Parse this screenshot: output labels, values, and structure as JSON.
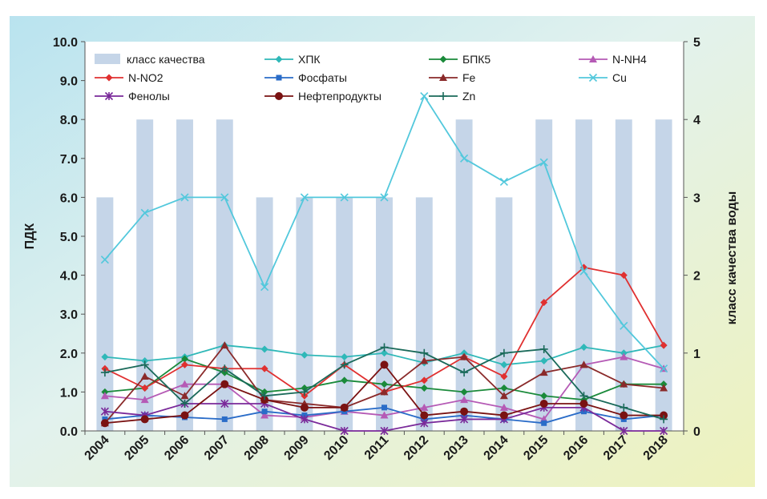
{
  "chart_data": {
    "type": "line",
    "x_categories": [
      "2004",
      "2005",
      "2006",
      "2007",
      "2008",
      "2009",
      "2010",
      "2011",
      "2012",
      "2013",
      "2014",
      "2015",
      "2016",
      "2017",
      "2018"
    ],
    "y_left": {
      "label": "ПДК",
      "range": [
        0,
        10
      ],
      "ticks": [
        "0.0",
        "1.0",
        "2.0",
        "3.0",
        "4.0",
        "5.0",
        "6.0",
        "7.0",
        "8.0",
        "9.0",
        "10.0"
      ]
    },
    "y_right": {
      "label": "класс качества воды",
      "range": [
        0,
        5
      ],
      "ticks": [
        "0",
        "1",
        "2",
        "3",
        "4",
        "5"
      ]
    },
    "bars": {
      "name": "класс качества",
      "axis": "right",
      "color": "#c5d5e8",
      "values": [
        3,
        4,
        4,
        4,
        3,
        3,
        3,
        3,
        3,
        4,
        3,
        4,
        4,
        4,
        4
      ]
    },
    "series": [
      {
        "name": "ХПК",
        "color": "#2fb8b8",
        "marker": "diamond",
        "values": [
          1.9,
          1.8,
          1.9,
          2.2,
          2.1,
          1.95,
          1.9,
          2.0,
          1.75,
          2.0,
          1.7,
          1.8,
          2.15,
          2.0,
          2.2
        ]
      },
      {
        "name": "БПК5",
        "color": "#1a8a3a",
        "marker": "diamond",
        "values": [
          1.0,
          1.1,
          1.85,
          1.5,
          1.0,
          1.1,
          1.3,
          1.2,
          1.1,
          1.0,
          1.1,
          0.9,
          0.8,
          1.2,
          1.2
        ]
      },
      {
        "name": "N-NH4",
        "color": "#b55ab5",
        "marker": "triangle",
        "values": [
          0.9,
          0.8,
          1.2,
          1.2,
          0.4,
          0.35,
          0.5,
          0.4,
          0.6,
          0.8,
          0.6,
          0.3,
          1.7,
          1.9,
          1.6
        ]
      },
      {
        "name": "N-NO2",
        "color": "#e03030",
        "marker": "diamond",
        "values": [
          1.6,
          1.1,
          1.7,
          1.6,
          1.6,
          0.9,
          1.7,
          1.0,
          1.3,
          1.9,
          1.4,
          3.3,
          4.2,
          4.0,
          2.2
        ]
      },
      {
        "name": "Фосфаты",
        "color": "#2a6cc8",
        "marker": "square",
        "values": [
          0.3,
          0.4,
          0.35,
          0.3,
          0.5,
          0.4,
          0.5,
          0.6,
          0.3,
          0.4,
          0.3,
          0.2,
          0.5,
          0.3,
          0.4
        ]
      },
      {
        "name": "Fe",
        "color": "#8a2a2a",
        "marker": "triangle",
        "values": [
          0.2,
          1.4,
          0.9,
          2.2,
          0.8,
          0.7,
          0.6,
          1.0,
          1.8,
          1.9,
          0.9,
          1.5,
          1.7,
          1.2,
          1.1
        ]
      },
      {
        "name": "Cu",
        "color": "#52c8dc",
        "marker": "x",
        "values": [
          4.4,
          5.6,
          6.0,
          6.0,
          3.7,
          6.0,
          6.0,
          6.0,
          8.6,
          7.0,
          6.4,
          6.9,
          4.1,
          2.7,
          1.6
        ]
      },
      {
        "name": "Фенолы",
        "color": "#7a2a9a",
        "marker": "star",
        "values": [
          0.5,
          0.4,
          0.7,
          0.7,
          0.7,
          0.3,
          0.0,
          0.0,
          0.2,
          0.3,
          0.3,
          0.6,
          0.6,
          0.0,
          0.0
        ]
      },
      {
        "name": "Нефтепродукты",
        "color": "#7a1212",
        "marker": "circle",
        "values": [
          0.2,
          0.3,
          0.4,
          1.2,
          0.8,
          0.6,
          0.6,
          1.7,
          0.4,
          0.5,
          0.4,
          0.7,
          0.7,
          0.4,
          0.4
        ]
      },
      {
        "name": "Zn",
        "color": "#1a6a5a",
        "marker": "plus",
        "values": [
          1.5,
          1.7,
          0.7,
          1.6,
          0.9,
          1.0,
          1.7,
          2.15,
          2.0,
          1.5,
          2.0,
          2.1,
          0.9,
          0.6,
          0.3
        ]
      }
    ],
    "legend_position": "top-inside",
    "grid": false
  }
}
